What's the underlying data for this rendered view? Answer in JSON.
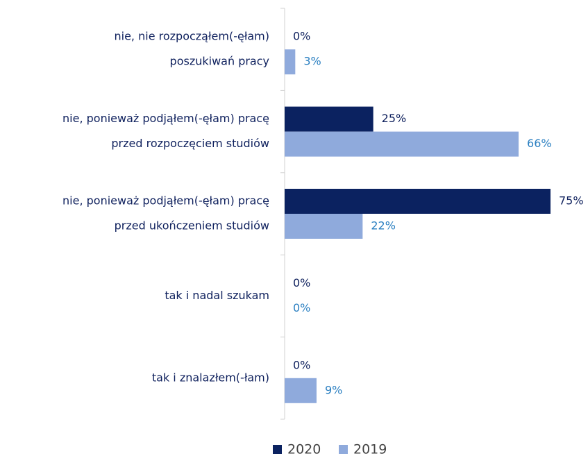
{
  "chart_data": {
    "type": "bar",
    "orientation": "horizontal",
    "categories": [
      [
        "nie, nie rozpocząłem(-ęłam)",
        "poszukiwań pracy"
      ],
      [
        "nie, ponieważ podjąłem(-ęłam) pracę",
        "przed rozpoczęciem studiów"
      ],
      [
        "nie, ponieważ podjąłem(-ęłam) pracę",
        "przed ukończeniem studiów"
      ],
      [
        "tak i nadal szukam"
      ],
      [
        "tak i znalazłem(-łam)"
      ]
    ],
    "series": [
      {
        "name": "2020",
        "color": "#0b2260",
        "label_color": "#0d1f5c",
        "values": [
          0,
          25,
          75,
          0,
          0
        ],
        "value_labels": [
          "0%",
          "25%",
          "75%",
          "0%",
          "0%"
        ]
      },
      {
        "name": "2019",
        "color": "#8faadc",
        "label_color": "#2a7fc1",
        "values": [
          3,
          66,
          22,
          0,
          9
        ],
        "value_labels": [
          "3%",
          "66%",
          "22%",
          "0%",
          "9%"
        ]
      }
    ],
    "legend": "bottom"
  }
}
